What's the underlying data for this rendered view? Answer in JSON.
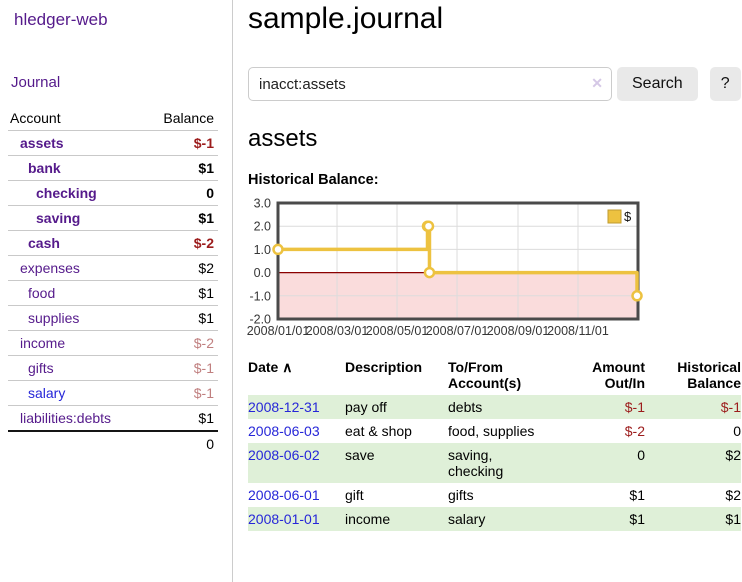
{
  "app": {
    "title": "hledger-web"
  },
  "colors": {
    "accent_purple": "#551a8b",
    "link_blue": "#2626d8",
    "neg_strong": "#9c1c1c",
    "neg_soft": "#c07f7f",
    "row_green": "#dff0d8",
    "chart_gold": "#edc240",
    "negative_fill": "#fadcdc",
    "zero_line": "#8b0000"
  },
  "sidebar": {
    "journal_label": "Journal",
    "accounts_table": {
      "headers": {
        "account": "Account",
        "balance": "Balance"
      },
      "rows": [
        {
          "name": "assets",
          "depth": 1,
          "balance": "$-1",
          "bold": true,
          "neg": "strong",
          "blue": false
        },
        {
          "name": "bank",
          "depth": 2,
          "balance": "$1",
          "bold": true,
          "neg": null,
          "blue": false
        },
        {
          "name": "checking",
          "depth": 3,
          "balance": "0",
          "bold": true,
          "neg": null,
          "blue": false
        },
        {
          "name": "saving",
          "depth": 3,
          "balance": "$1",
          "bold": true,
          "neg": null,
          "blue": false
        },
        {
          "name": "cash",
          "depth": 2,
          "balance": "$-2",
          "bold": true,
          "neg": "strong",
          "blue": false
        },
        {
          "name": "expenses",
          "depth": 1,
          "balance": "$2",
          "bold": false,
          "neg": null,
          "blue": false
        },
        {
          "name": "food",
          "depth": 2,
          "balance": "$1",
          "bold": false,
          "neg": null,
          "blue": false
        },
        {
          "name": "supplies",
          "depth": 2,
          "balance": "$1",
          "bold": false,
          "neg": null,
          "blue": false
        },
        {
          "name": "income",
          "depth": 1,
          "balance": "$-2",
          "bold": false,
          "neg": "soft",
          "blue": false
        },
        {
          "name": "gifts",
          "depth": 2,
          "balance": "$-1",
          "bold": false,
          "neg": "soft",
          "blue": false
        },
        {
          "name": "salary",
          "depth": 2,
          "balance": "$-1",
          "bold": false,
          "neg": "soft",
          "blue": true
        },
        {
          "name": "liabilities:debts",
          "depth": 1,
          "balance": "$1",
          "bold": false,
          "neg": null,
          "blue": false
        }
      ],
      "total": "0"
    }
  },
  "main": {
    "title": "sample.journal",
    "search": {
      "value": "inacct:assets",
      "clear_icon": "✕",
      "button_label": "Search",
      "help_label": "?"
    },
    "account_heading": "assets",
    "chart_label": "Historical Balance:"
  },
  "chart_data": {
    "type": "line",
    "title": "Historical Balance",
    "step": true,
    "series": [
      {
        "name": "$",
        "color": "#edc240",
        "points": [
          [
            "2008-01-01",
            1
          ],
          [
            "2008-06-01",
            2
          ],
          [
            "2008-06-02",
            2
          ],
          [
            "2008-06-03",
            0
          ],
          [
            "2008-12-31",
            -1
          ]
        ]
      }
    ],
    "x_range": [
      "2008-01-01",
      "2009-01-01"
    ],
    "x_tick_labels": [
      "2008/01/01",
      "2008/03/01",
      "2008/05/01",
      "2008/07/01",
      "2008/09/01",
      "2008/11/01"
    ],
    "y_tick_labels": [
      "3.0",
      "2.0",
      "1.0",
      "0.0",
      "-1.0",
      "-2.0"
    ],
    "ylim": [
      -2,
      3
    ],
    "legend_label": "$",
    "legend_position": "top-right",
    "grid": true,
    "zero_line_color": "#8b0000",
    "negative_fill": "#fadcdc",
    "marker": {
      "fill": "#ffffff",
      "stroke": "#edc240"
    }
  },
  "register": {
    "headers": {
      "date": "Date",
      "sort_arrow": "∧",
      "description": "Description",
      "accounts": "To/From Account(s)",
      "amount": "Amount Out/In",
      "balance": "Historical Balance"
    },
    "rows": [
      {
        "date": "2008-12-31",
        "description": "pay off",
        "accounts": "debts",
        "amount": "$-1",
        "balance": "$-1"
      },
      {
        "date": "2008-06-03",
        "description": "eat & shop",
        "accounts": "food, supplies",
        "amount": "$-2",
        "balance": "0"
      },
      {
        "date": "2008-06-02",
        "description": "save",
        "accounts": "saving, checking",
        "amount": "0",
        "balance": "$2"
      },
      {
        "date": "2008-06-01",
        "description": "gift",
        "accounts": "gifts",
        "amount": "$1",
        "balance": "$2"
      },
      {
        "date": "2008-01-01",
        "description": "income",
        "accounts": "salary",
        "amount": "$1",
        "balance": "$1"
      }
    ]
  }
}
